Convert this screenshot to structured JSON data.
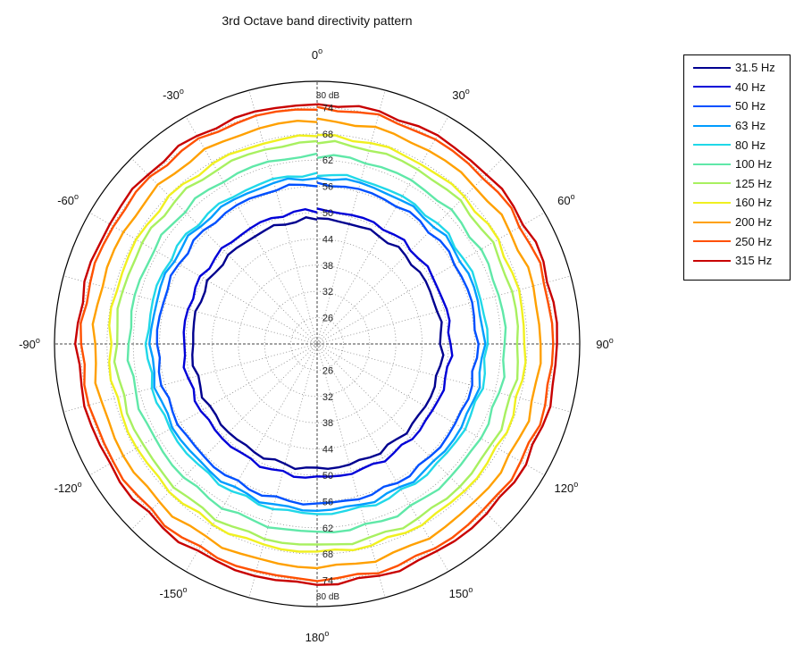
{
  "chart_data": {
    "type": "polar-line",
    "title": "3rd Octave band directivity pattern",
    "angle_labels": [
      {
        "deg": 0,
        "label": "0"
      },
      {
        "deg": 30,
        "label": "30"
      },
      {
        "deg": 60,
        "label": "60"
      },
      {
        "deg": 90,
        "label": "90"
      },
      {
        "deg": 120,
        "label": "120"
      },
      {
        "deg": 150,
        "label": "150"
      },
      {
        "deg": 180,
        "label": "180"
      },
      {
        "deg": -150,
        "label": "-150"
      },
      {
        "deg": -120,
        "label": "-120"
      },
      {
        "deg": -90,
        "label": "-90"
      },
      {
        "deg": -60,
        "label": "-60"
      },
      {
        "deg": -30,
        "label": "-30"
      }
    ],
    "degree_symbol": "o",
    "radial_range_db": [
      20,
      80
    ],
    "radial_ticks_upper": [
      "26",
      "32",
      "38",
      "44",
      "50",
      "56",
      "62",
      "68",
      "74",
      "80 dB"
    ],
    "radial_ticks_lower": [
      "26",
      "32",
      "38",
      "44",
      "50",
      "56",
      "62",
      "68",
      "74",
      "80 dB"
    ],
    "grid": true,
    "legend_position": "top-right",
    "series": [
      {
        "name": "31.5 Hz",
        "level_db": 48.5,
        "color": "#00008f"
      },
      {
        "name": "40 Hz",
        "level_db": 50.5,
        "color": "#0000d8"
      },
      {
        "name": "50 Hz",
        "level_db": 56.5,
        "color": "#0050ff"
      },
      {
        "name": "63 Hz",
        "level_db": 58.0,
        "color": "#009cff"
      },
      {
        "name": "80 Hz",
        "level_db": 58.8,
        "color": "#20d8e8"
      },
      {
        "name": "100 Hz",
        "level_db": 63.0,
        "color": "#60e8a8"
      },
      {
        "name": "125 Hz",
        "level_db": 66.0,
        "color": "#a8f060"
      },
      {
        "name": "160 Hz",
        "level_db": 67.5,
        "color": "#f0f020"
      },
      {
        "name": "200 Hz",
        "level_db": 71.0,
        "color": "#ffa000"
      },
      {
        "name": "250 Hz",
        "level_db": 73.8,
        "color": "#ff5000"
      },
      {
        "name": "315 Hz",
        "level_db": 74.8,
        "color": "#c80000"
      }
    ]
  }
}
